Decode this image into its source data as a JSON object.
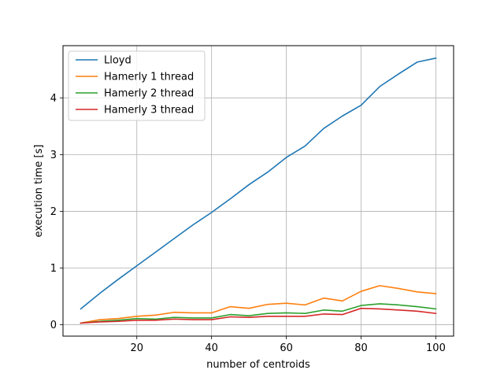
{
  "chart_data": {
    "type": "line",
    "title": "",
    "xlabel": "number of centroids",
    "ylabel": "execution time [s]",
    "x": [
      5,
      10,
      15,
      20,
      25,
      30,
      35,
      40,
      45,
      50,
      55,
      60,
      65,
      70,
      75,
      80,
      85,
      90,
      95,
      100
    ],
    "xlim": [
      0.25,
      104.75
    ],
    "ylim": [
      -0.2,
      4.92
    ],
    "xticks": [
      20,
      40,
      60,
      80,
      100
    ],
    "yticks": [
      0,
      1,
      2,
      3,
      4
    ],
    "grid": true,
    "legend_position": "upper left",
    "series": [
      {
        "name": "Lloyd",
        "color": "#1f77b4",
        "values": [
          0.28,
          0.55,
          0.8,
          1.04,
          1.28,
          1.52,
          1.76,
          1.98,
          2.22,
          2.47,
          2.69,
          2.95,
          3.15,
          3.46,
          3.68,
          3.87,
          4.2,
          4.42,
          4.63,
          4.7
        ]
      },
      {
        "name": "Hamerly 1 thread",
        "color": "#ff7f0e",
        "values": [
          0.03,
          0.09,
          0.11,
          0.15,
          0.17,
          0.22,
          0.21,
          0.21,
          0.32,
          0.29,
          0.36,
          0.38,
          0.35,
          0.47,
          0.42,
          0.59,
          0.69,
          0.64,
          0.58,
          0.55
        ]
      },
      {
        "name": "Hamerly 2 thread",
        "color": "#2ca02c",
        "values": [
          0.03,
          0.06,
          0.08,
          0.11,
          0.1,
          0.13,
          0.12,
          0.12,
          0.18,
          0.16,
          0.2,
          0.21,
          0.2,
          0.26,
          0.24,
          0.34,
          0.37,
          0.35,
          0.32,
          0.28
        ]
      },
      {
        "name": "Hamerly 3 thread",
        "color": "#d62728",
        "values": [
          0.03,
          0.05,
          0.06,
          0.08,
          0.08,
          0.1,
          0.09,
          0.09,
          0.14,
          0.13,
          0.15,
          0.15,
          0.15,
          0.19,
          0.18,
          0.29,
          0.28,
          0.26,
          0.24,
          0.2
        ]
      }
    ]
  }
}
